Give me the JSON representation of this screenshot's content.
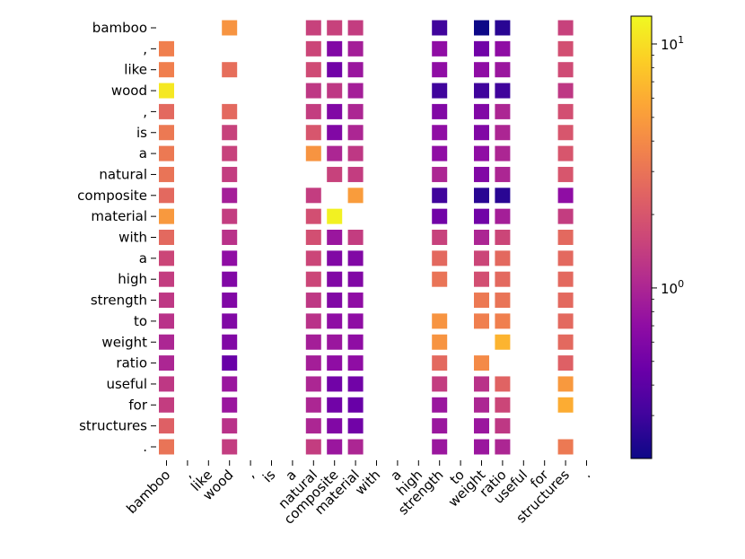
{
  "chart_data": {
    "type": "heatmap",
    "title": "",
    "xlabel": "",
    "ylabel": "",
    "tokens": [
      "bamboo",
      ",",
      "like",
      "wood",
      ",",
      "is",
      "a",
      "natural",
      "composite",
      "material",
      "with",
      "a",
      "high",
      "strength",
      "to",
      "weight",
      "ratio",
      "useful",
      "for",
      "structures",
      "."
    ],
    "x_tick_labels": [
      "bamboo",
      ",",
      "like",
      "wood",
      ",",
      "is",
      "a",
      "natural",
      "composite",
      "material",
      "with",
      "a",
      "high",
      "strength",
      "to",
      "weight",
      "ratio",
      "useful",
      "for",
      "structures",
      "."
    ],
    "y_tick_labels": [
      "bamboo",
      ",",
      "like",
      "wood",
      ",",
      "is",
      "a",
      "natural",
      "composite",
      "material",
      "with",
      "a",
      "high",
      "strength",
      "to",
      "weight",
      "ratio",
      "useful",
      "for",
      "structures",
      "."
    ],
    "colormap": "plasma",
    "color_scale": "log",
    "vmin": 0.2,
    "vmax": 13,
    "colorbar_ticks": [
      {
        "value": 1,
        "label": "10",
        "exp": "0"
      },
      {
        "value": 10,
        "label": "10",
        "exp": "1"
      }
    ],
    "matrix": [
      [
        null,
        null,
        null,
        4.5,
        null,
        null,
        null,
        1.5,
        1.5,
        1.4,
        null,
        null,
        null,
        0.3,
        null,
        0.2,
        0.25,
        null,
        null,
        1.5,
        null
      ],
      [
        3.5,
        null,
        null,
        null,
        null,
        null,
        null,
        1.6,
        0.6,
        0.9,
        null,
        null,
        null,
        0.7,
        null,
        0.5,
        0.7,
        null,
        null,
        1.8,
        null
      ],
      [
        3.5,
        null,
        null,
        2.8,
        null,
        null,
        null,
        1.7,
        0.5,
        0.8,
        null,
        null,
        null,
        0.7,
        null,
        0.7,
        0.8,
        null,
        null,
        1.7,
        null
      ],
      [
        11,
        null,
        null,
        null,
        null,
        null,
        null,
        1.3,
        1.3,
        0.9,
        null,
        null,
        null,
        0.3,
        null,
        0.3,
        0.3,
        null,
        null,
        1.3,
        null
      ],
      [
        2.6,
        null,
        null,
        2.6,
        null,
        null,
        null,
        1.4,
        0.6,
        1.0,
        null,
        null,
        null,
        0.6,
        null,
        0.6,
        1.0,
        null,
        null,
        1.8,
        null
      ],
      [
        3.2,
        null,
        null,
        1.5,
        null,
        null,
        null,
        2.0,
        0.6,
        1.0,
        null,
        null,
        null,
        0.7,
        null,
        0.6,
        1.0,
        null,
        null,
        2.0,
        null
      ],
      [
        3.2,
        null,
        null,
        1.5,
        null,
        null,
        null,
        4.5,
        1.0,
        1.3,
        null,
        null,
        null,
        0.7,
        null,
        0.7,
        1.0,
        null,
        null,
        2.0,
        null
      ],
      [
        3.0,
        null,
        null,
        1.4,
        null,
        null,
        null,
        null,
        1.5,
        1.4,
        null,
        null,
        null,
        1.0,
        null,
        0.6,
        1.0,
        null,
        null,
        2.0,
        null
      ],
      [
        2.6,
        null,
        null,
        0.9,
        null,
        null,
        null,
        1.4,
        null,
        5.0,
        null,
        null,
        null,
        0.3,
        null,
        0.25,
        0.25,
        null,
        null,
        0.7,
        null
      ],
      [
        4.8,
        null,
        null,
        1.4,
        null,
        null,
        null,
        1.8,
        12,
        null,
        null,
        null,
        null,
        0.5,
        null,
        0.5,
        0.9,
        null,
        null,
        1.4,
        null
      ],
      [
        2.6,
        null,
        null,
        1.2,
        null,
        null,
        null,
        1.8,
        0.8,
        1.4,
        null,
        null,
        null,
        1.5,
        null,
        1.0,
        1.6,
        null,
        null,
        2.6,
        null
      ],
      [
        1.6,
        null,
        null,
        0.7,
        null,
        null,
        null,
        1.6,
        0.6,
        0.6,
        null,
        null,
        null,
        2.6,
        null,
        1.6,
        2.6,
        null,
        null,
        2.6,
        null
      ],
      [
        1.4,
        null,
        null,
        0.6,
        null,
        null,
        null,
        1.6,
        0.6,
        0.6,
        null,
        null,
        null,
        3.0,
        null,
        1.8,
        2.6,
        null,
        null,
        2.6,
        null
      ],
      [
        1.3,
        null,
        null,
        0.6,
        null,
        null,
        null,
        1.3,
        0.6,
        0.7,
        null,
        null,
        null,
        null,
        null,
        3.2,
        3.0,
        null,
        null,
        2.6,
        null
      ],
      [
        1.2,
        null,
        null,
        0.6,
        null,
        null,
        null,
        1.2,
        0.7,
        0.7,
        null,
        null,
        null,
        4.5,
        null,
        3.5,
        3.5,
        null,
        null,
        2.6,
        null
      ],
      [
        1.0,
        null,
        null,
        0.6,
        null,
        null,
        null,
        0.9,
        0.8,
        0.7,
        null,
        null,
        null,
        4.5,
        null,
        null,
        6.5,
        null,
        null,
        2.6,
        null
      ],
      [
        1.0,
        null,
        null,
        0.45,
        null,
        null,
        null,
        0.9,
        0.7,
        0.7,
        null,
        null,
        null,
        2.6,
        null,
        4.0,
        null,
        null,
        null,
        2.3,
        null
      ],
      [
        1.3,
        null,
        null,
        0.8,
        null,
        null,
        null,
        1.0,
        0.5,
        0.5,
        null,
        null,
        null,
        1.4,
        null,
        1.2,
        2.4,
        null,
        null,
        4.8,
        null
      ],
      [
        1.4,
        null,
        null,
        0.8,
        null,
        null,
        null,
        1.0,
        0.5,
        0.45,
        null,
        null,
        null,
        0.8,
        null,
        1.0,
        1.6,
        null,
        null,
        6.0,
        null
      ],
      [
        2.3,
        null,
        null,
        1.2,
        null,
        null,
        null,
        1.0,
        0.6,
        0.5,
        null,
        null,
        null,
        0.8,
        null,
        0.8,
        1.3,
        null,
        null,
        null,
        null
      ],
      [
        3.0,
        null,
        null,
        1.4,
        null,
        null,
        null,
        1.4,
        0.8,
        1.0,
        null,
        null,
        null,
        0.8,
        null,
        0.8,
        1.0,
        null,
        null,
        3.2,
        null
      ]
    ]
  }
}
